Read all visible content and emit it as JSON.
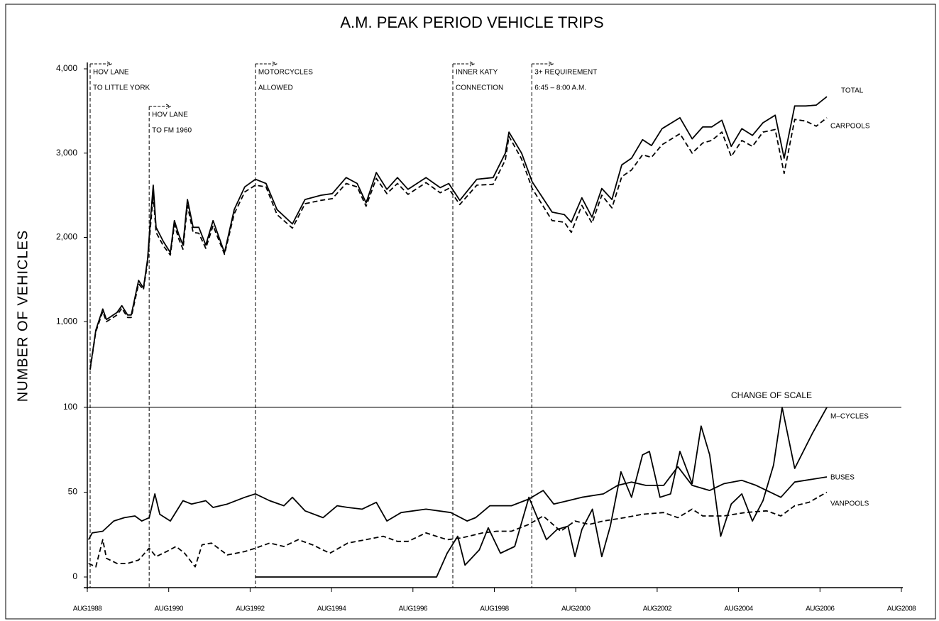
{
  "chart_data": [
    {
      "type": "line",
      "title": "A.M. PEAK PERIOD VEHICLE TRIPS",
      "y_label": "NUMBER OF VEHICLES",
      "xlim": [
        1988.58,
        2008.58
      ],
      "ylim": [
        0,
        4000
      ],
      "yticks": [
        {
          "value": 1000,
          "label": "1,000"
        },
        {
          "value": 2000,
          "label": "2,000"
        },
        {
          "value": 3000,
          "label": "3,000"
        },
        {
          "value": 4000,
          "label": "4,000"
        }
      ],
      "series": [
        {
          "name": "TOTAL",
          "color": "#000000",
          "style": "solid",
          "x": [
            1988.65,
            1988.79,
            1988.96,
            1989.05,
            1989.31,
            1989.43,
            1989.57,
            1989.66,
            1989.84,
            1989.96,
            1990.06,
            1990.13,
            1990.2,
            1990.27,
            1990.45,
            1990.62,
            1990.72,
            1990.83,
            1990.93,
            1991.04,
            1991.18,
            1991.32,
            1991.49,
            1991.67,
            1991.95,
            1992.19,
            1992.45,
            1992.71,
            1992.97,
            1993.24,
            1993.62,
            1993.93,
            1994.32,
            1994.6,
            1994.94,
            1995.21,
            1995.43,
            1995.68,
            1995.94,
            1996.2,
            1996.46,
            1996.9,
            1997.25,
            1997.46,
            1997.73,
            1998.15,
            1998.55,
            1998.85,
            1998.94,
            1999.25,
            1999.51,
            2000.0,
            2000.3,
            2000.47,
            2000.73,
            2000.98,
            2001.22,
            2001.47,
            2001.71,
            2001.95,
            2002.22,
            2002.44,
            2002.7,
            2003.14,
            2003.44,
            2003.7,
            2003.92,
            2004.17,
            2004.4,
            2004.66,
            2004.92,
            2005.18,
            2005.48,
            2005.7,
            2005.96,
            2006.23,
            2006.49,
            2006.75
          ],
          "values": [
            437,
            900,
            1150,
            1025,
            1110,
            1190,
            1080,
            1080,
            1490,
            1400,
            1740,
            2200,
            2620,
            2120,
            1950,
            1820,
            2200,
            2030,
            1910,
            2450,
            2120,
            2120,
            1910,
            2200,
            1820,
            2330,
            2600,
            2690,
            2640,
            2330,
            2160,
            2450,
            2500,
            2520,
            2710,
            2640,
            2410,
            2770,
            2570,
            2710,
            2570,
            2710,
            2590,
            2640,
            2440,
            2690,
            2710,
            3000,
            3250,
            3000,
            2660,
            2300,
            2270,
            2180,
            2470,
            2240,
            2580,
            2450,
            2860,
            2940,
            3160,
            3090,
            3290,
            3420,
            3170,
            3310,
            3310,
            3390,
            3080,
            3290,
            3210,
            3360,
            3450,
            2940,
            3560,
            3560,
            3570,
            3670
          ]
        },
        {
          "name": "CARPOOLS",
          "color": "#000000",
          "style": "dashed",
          "x": [
            1988.65,
            1988.79,
            1988.96,
            1989.05,
            1989.31,
            1989.43,
            1989.57,
            1989.66,
            1989.84,
            1989.96,
            1990.06,
            1990.13,
            1990.2,
            1990.27,
            1990.45,
            1990.62,
            1990.72,
            1990.83,
            1990.93,
            1991.04,
            1991.18,
            1991.32,
            1991.49,
            1991.67,
            1991.95,
            1992.19,
            1992.45,
            1992.71,
            1992.97,
            1993.24,
            1993.62,
            1993.93,
            1994.32,
            1994.6,
            1994.94,
            1995.21,
            1995.43,
            1995.68,
            1995.94,
            1996.2,
            1996.46,
            1996.9,
            1997.25,
            1997.46,
            1997.73,
            1998.15,
            1998.55,
            1998.85,
            1998.94,
            1999.25,
            1999.51,
            2000.0,
            2000.3,
            2000.47,
            2000.73,
            2000.98,
            2001.22,
            2001.47,
            2001.71,
            2001.95,
            2002.22,
            2002.44,
            2002.7,
            2003.14,
            2003.44,
            2003.7,
            2003.92,
            2004.17,
            2004.4,
            2004.66,
            2004.92,
            2005.18,
            2005.48,
            2005.7,
            2005.96,
            2006.23,
            2006.49,
            2006.75
          ],
          "values": [
            430,
            880,
            1120,
            1000,
            1080,
            1160,
            1050,
            1050,
            1450,
            1380,
            1700,
            2120,
            2500,
            2060,
            1900,
            1790,
            2150,
            1980,
            1860,
            2380,
            2060,
            2050,
            1870,
            2140,
            1800,
            2280,
            2540,
            2620,
            2600,
            2270,
            2110,
            2400,
            2440,
            2460,
            2640,
            2600,
            2370,
            2700,
            2520,
            2640,
            2510,
            2650,
            2530,
            2580,
            2390,
            2620,
            2630,
            2920,
            3200,
            2930,
            2580,
            2200,
            2180,
            2060,
            2380,
            2170,
            2500,
            2350,
            2720,
            2800,
            2980,
            2950,
            3100,
            3230,
            3000,
            3120,
            3150,
            3250,
            2960,
            3150,
            3080,
            3250,
            3280,
            2760,
            3400,
            3380,
            3320,
            3420
          ]
        }
      ],
      "annotations": [
        {
          "x": 1988.65,
          "lines": [
            "HOV LANE",
            "TO LITTLE YORK"
          ]
        },
        {
          "x": 1990.1,
          "lines": [
            "HOV LANE",
            "TO FM 1960"
          ]
        },
        {
          "x": 1992.71,
          "lines": [
            "MOTORCYCLES",
            "ALLOWED"
          ]
        },
        {
          "x": 1997.56,
          "lines": [
            "INNER KATY",
            "CONNECTION"
          ]
        },
        {
          "x": 1999.5,
          "lines": [
            "3+ REQUIREMENT",
            "6:45 – 8:00 A.M."
          ]
        }
      ]
    },
    {
      "type": "line",
      "annotation": "CHANGE OF SCALE",
      "xlim": [
        1988.58,
        2008.58
      ],
      "ylim": [
        0,
        100
      ],
      "yticks": [
        0,
        50,
        100
      ],
      "xticks": [
        {
          "value": 1988.58,
          "label": "AUG1988"
        },
        {
          "value": 1990.58,
          "label": "AUG1990"
        },
        {
          "value": 1992.58,
          "label": "AUG1992"
        },
        {
          "value": 1994.58,
          "label": "AUG1994"
        },
        {
          "value": 1996.58,
          "label": "AUG1996"
        },
        {
          "value": 1998.58,
          "label": "AUG1998"
        },
        {
          "value": 2000.58,
          "label": "AUG2000"
        },
        {
          "value": 2002.58,
          "label": "AUG2002"
        },
        {
          "value": 2004.58,
          "label": "AUG2004"
        },
        {
          "value": 2006.58,
          "label": "AUG2006"
        },
        {
          "value": 2008.58,
          "label": "AUG2008"
        }
      ],
      "series": [
        {
          "name": "M–CYCLES",
          "color": "#000000",
          "style": "solid",
          "x": [
            1992.71,
            1997.16,
            1997.42,
            1997.68,
            1997.86,
            1998.21,
            1998.43,
            1998.73,
            1999.08,
            1999.43,
            1999.86,
            2000.12,
            2000.39,
            2000.56,
            2000.73,
            2000.99,
            2001.22,
            2001.43,
            2001.69,
            2001.95,
            2002.22,
            2002.39,
            2002.65,
            2002.91,
            2003.14,
            2003.44,
            2003.66,
            2003.87,
            2004.14,
            2004.4,
            2004.66,
            2004.92,
            2005.18,
            2005.44,
            2005.65,
            2005.96,
            2006.4,
            2006.75
          ],
          "values": [
            0,
            0,
            14,
            24,
            7,
            16,
            29,
            14,
            18,
            47,
            22,
            28,
            30,
            12,
            28,
            40,
            12,
            30,
            62,
            47,
            72,
            74,
            47,
            49,
            74,
            55,
            89,
            72,
            24,
            43,
            49,
            33,
            45,
            66,
            100,
            64,
            85,
            100
          ]
        },
        {
          "name": "BUSES",
          "color": "#000000",
          "style": "solid",
          "x": [
            1988.61,
            1988.7,
            1988.96,
            1989.23,
            1989.49,
            1989.75,
            1989.92,
            1990.1,
            1990.24,
            1990.36,
            1990.62,
            1990.93,
            1991.14,
            1991.49,
            1991.67,
            1992.02,
            1992.45,
            1992.71,
            1993.06,
            1993.41,
            1993.62,
            1993.93,
            1994.37,
            1994.72,
            1994.98,
            1995.33,
            1995.68,
            1995.94,
            1996.29,
            1996.9,
            1997.51,
            1997.91,
            1998.12,
            1998.47,
            1999.0,
            1999.43,
            1999.78,
            2000.04,
            2000.39,
            2000.73,
            2001.26,
            2001.61,
            2001.95,
            2002.3,
            2002.74,
            2003.09,
            2003.44,
            2003.87,
            2004.22,
            2004.66,
            2005.01,
            2005.62,
            2005.96,
            2006.75
          ],
          "values": [
            22,
            26,
            27,
            33,
            35,
            36,
            33,
            35,
            49,
            37,
            33,
            45,
            43,
            45,
            41,
            43,
            47,
            49,
            45,
            42,
            47,
            39,
            35,
            42,
            41,
            40,
            44,
            33,
            38,
            40,
            38,
            33,
            35,
            42,
            42,
            46,
            51,
            43,
            45,
            47,
            49,
            54,
            56,
            54,
            54,
            65,
            54,
            51,
            55,
            57,
            54,
            47,
            56,
            59
          ]
        },
        {
          "name": "VANPOOLS",
          "color": "#000000",
          "style": "dashed",
          "x": [
            1988.61,
            1988.79,
            1988.96,
            1989.05,
            1989.31,
            1989.57,
            1989.84,
            1990.1,
            1990.27,
            1990.53,
            1990.76,
            1990.97,
            1991.23,
            1991.4,
            1991.63,
            1992.02,
            1992.45,
            1992.71,
            1993.06,
            1993.41,
            1993.76,
            1994.11,
            1994.54,
            1994.98,
            1995.42,
            1995.85,
            1996.2,
            1996.46,
            1996.9,
            1997.42,
            1997.77,
            1998.29,
            1998.64,
            1999.0,
            1999.43,
            1999.78,
            2000.21,
            2000.56,
            2000.91,
            2001.26,
            2001.78,
            2002.22,
            2002.74,
            2003.09,
            2003.44,
            2003.7,
            2004.22,
            2004.74,
            2005.27,
            2005.62,
            2005.96,
            2006.31,
            2006.75
          ],
          "values": [
            8,
            6,
            22,
            11,
            8,
            8,
            10,
            17,
            12,
            15,
            18,
            14,
            6,
            19,
            20,
            13,
            15,
            17,
            20,
            18,
            22,
            19,
            14,
            20,
            22,
            24,
            21,
            21,
            26,
            22,
            23,
            26,
            27,
            27,
            31,
            36,
            27,
            33,
            31,
            33,
            35,
            37,
            38,
            35,
            40,
            36,
            36,
            38,
            39,
            36,
            42,
            44,
            50
          ]
        }
      ]
    }
  ]
}
